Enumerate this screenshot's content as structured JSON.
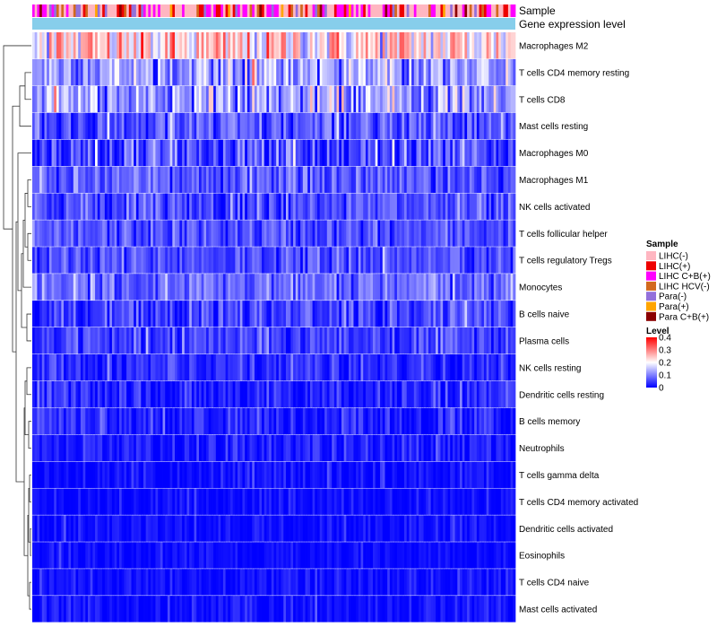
{
  "chart_data": {
    "type": "heatmap",
    "title": "",
    "annotation_tracks": [
      "Sample",
      "Gene expression level"
    ],
    "rows": [
      {
        "name": "Macrophages M2",
        "mean": 0.22,
        "sd": 0.07
      },
      {
        "name": "T cells CD4 memory resting",
        "mean": 0.13,
        "sd": 0.05
      },
      {
        "name": "T cells CD8",
        "mean": 0.12,
        "sd": 0.06
      },
      {
        "name": "Mast cells resting",
        "mean": 0.06,
        "sd": 0.04
      },
      {
        "name": "Macrophages M0",
        "mean": 0.05,
        "sd": 0.06
      },
      {
        "name": "Macrophages M1",
        "mean": 0.07,
        "sd": 0.035
      },
      {
        "name": "NK cells activated",
        "mean": 0.06,
        "sd": 0.035
      },
      {
        "name": "T cells follicular helper",
        "mean": 0.06,
        "sd": 0.03
      },
      {
        "name": "T cells regulatory  Tregs",
        "mean": 0.06,
        "sd": 0.03
      },
      {
        "name": "Monocytes",
        "mean": 0.08,
        "sd": 0.035
      },
      {
        "name": "B cells naive",
        "mean": 0.05,
        "sd": 0.035
      },
      {
        "name": "Plasma cells",
        "mean": 0.05,
        "sd": 0.03
      },
      {
        "name": "NK cells resting",
        "mean": 0.03,
        "sd": 0.03
      },
      {
        "name": "Dendritic cells resting",
        "mean": 0.025,
        "sd": 0.03
      },
      {
        "name": "B cells memory",
        "mean": 0.02,
        "sd": 0.03
      },
      {
        "name": "Neutrophils",
        "mean": 0.02,
        "sd": 0.025
      },
      {
        "name": "T cells gamma delta",
        "mean": 0.01,
        "sd": 0.025
      },
      {
        "name": "T cells CD4 memory activated",
        "mean": 0.008,
        "sd": 0.02
      },
      {
        "name": "Dendritic cells activated",
        "mean": 0.008,
        "sd": 0.02
      },
      {
        "name": "Eosinophils",
        "mean": 0.005,
        "sd": 0.015
      },
      {
        "name": "T cells CD4 naive",
        "mean": 0.01,
        "sd": 0.02
      },
      {
        "name": "Mast cells activated",
        "mean": 0.01,
        "sd": 0.02
      }
    ],
    "n_samples": 200,
    "sample_legend": {
      "title": "Sample",
      "entries": [
        {
          "label": "LIHC(-)",
          "color": "#FFB6C1",
          "weight": 0.42
        },
        {
          "label": "LIHC(+)",
          "color": "#EE0000",
          "weight": 0.12
        },
        {
          "label": "LIHC C+B(+)",
          "color": "#FF00FF",
          "weight": 0.18
        },
        {
          "label": "LIHC HCV(-)",
          "color": "#D2691E",
          "weight": 0.09
        },
        {
          "label": "Para(-)",
          "color": "#9370DB",
          "weight": 0.1
        },
        {
          "label": "Para(+)",
          "color": "#FFA500",
          "weight": 0.05
        },
        {
          "label": "Para C+B(+)",
          "color": "#8B0000",
          "weight": 0.04
        }
      ]
    },
    "expression_level_color": "#87CEEB",
    "level_legend": {
      "title": "Level",
      "ticks": [
        "0.4",
        "0.3",
        "0.2",
        "0.1",
        "0"
      ],
      "tick_values": [
        0.4,
        0.3,
        0.2,
        0.1,
        0
      ],
      "range": [
        0,
        0.4
      ],
      "colors": [
        "#0000FF",
        "#FFFFFF",
        "#FF0000"
      ]
    }
  }
}
